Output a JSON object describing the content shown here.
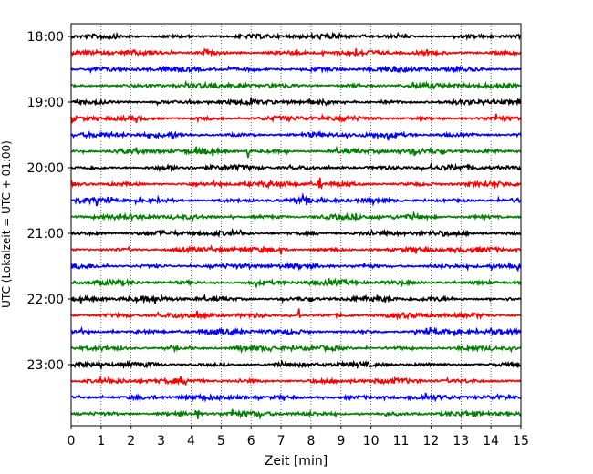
{
  "chart_data": {
    "type": "line",
    "title": "",
    "xlabel": "Zeit  [min]",
    "ylabel": "UTC (Lokalzeit = UTC + 01:00)",
    "xlim": [
      0,
      15
    ],
    "x_ticks": [
      0,
      1,
      2,
      3,
      4,
      5,
      6,
      7,
      8,
      9,
      10,
      11,
      12,
      13,
      14,
      15
    ],
    "y_tick_labels": [
      "18:00",
      "19:00",
      "20:00",
      "21:00",
      "22:00",
      "23:00"
    ],
    "grid": "vertical dotted lines at each minute",
    "trace_colors": [
      "#000000",
      "#ff0000",
      "#0000ff",
      "#008000"
    ],
    "trace_rows": [
      "18:00",
      "18:15",
      "18:30",
      "18:45",
      "19:00",
      "19:15",
      "19:30",
      "19:45",
      "20:00",
      "20:15",
      "20:30",
      "20:45",
      "21:00",
      "21:15",
      "21:30",
      "21:45",
      "22:00",
      "22:15",
      "22:30",
      "22:45",
      "23:00",
      "23:15",
      "23:30",
      "23:45"
    ],
    "events": [
      {
        "row": "18:15",
        "t": 4.5
      },
      {
        "row": "19:45",
        "t": 5.9
      },
      {
        "row": "20:15",
        "t": 8.3
      },
      {
        "row": "21:15",
        "t": 7.0
      },
      {
        "row": "22:15",
        "t": 7.6
      },
      {
        "row": "23:45",
        "t": 4.2
      }
    ]
  }
}
